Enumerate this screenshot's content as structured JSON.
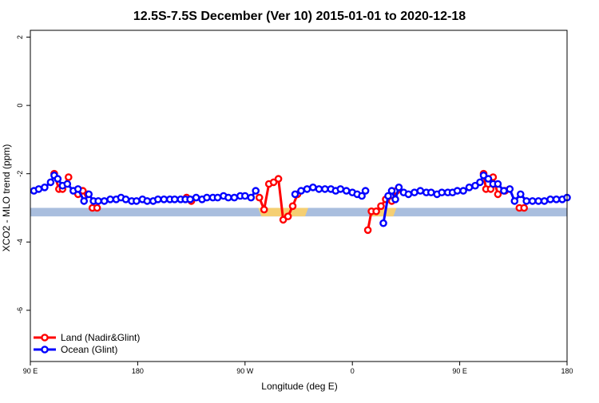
{
  "chart_data": {
    "type": "line",
    "title": "12.5S-7.5S December (Ver 10)   2015-01-01 to 2020-12-18",
    "xlabel": "Longitude (deg E)",
    "ylabel": "XCO2 - MLO trend (ppm)",
    "xlim": [
      90,
      540
    ],
    "ylim": [
      -7.5,
      2.2
    ],
    "x_ticks": [
      {
        "value": 90,
        "label": "90 E"
      },
      {
        "value": 180,
        "label": "180"
      },
      {
        "value": 270,
        "label": "90 W"
      },
      {
        "value": 360,
        "label": "0"
      },
      {
        "value": 450,
        "label": "90 E"
      },
      {
        "value": 540,
        "label": "180"
      }
    ],
    "y_ticks": [
      {
        "value": 2,
        "label": "2"
      },
      {
        "value": 0,
        "label": "0"
      },
      {
        "value": -2,
        "label": "-2"
      },
      {
        "value": -4,
        "label": "-4"
      },
      {
        "value": -6,
        "label": "-6"
      }
    ],
    "band": {
      "y_low": -3.25,
      "y_high": -3.0,
      "color": "#a9bede"
    },
    "band_highlights": [
      {
        "x_start": 281,
        "x_end": 323,
        "color": "#f5cf73"
      },
      {
        "x_start": 373,
        "x_end": 397,
        "color": "#f5cf73"
      }
    ],
    "legend": {
      "position": "bottom-left"
    },
    "series": [
      {
        "name": "Land (Nadir&Glint)",
        "color": "#ff0000",
        "segments": [
          {
            "x": [
              110,
              114,
              117,
              122
            ],
            "y": [
              -2.0,
              -2.45,
              -2.45,
              -2.1
            ]
          },
          {
            "x": [
              130,
              134,
              138
            ],
            "y": [
              -2.6,
              -2.5,
              -2.6
            ]
          },
          {
            "x": [
              142,
              146
            ],
            "y": [
              -3.0,
              -3.0
            ]
          },
          {
            "x": [
              221,
              225
            ],
            "y": [
              -2.7,
              -2.8
            ]
          },
          {
            "x": [
              282,
              286,
              290,
              294,
              298,
              302,
              306,
              310,
              314
            ],
            "y": [
              -2.7,
              -3.05,
              -2.3,
              -2.25,
              -2.15,
              -3.35,
              -3.25,
              -2.95,
              -2.6
            ]
          },
          {
            "x": [
              373,
              376,
              380,
              384,
              388,
              393,
              397
            ],
            "y": [
              -3.65,
              -3.1,
              -3.1,
              -2.95,
              -2.75,
              -2.8,
              -2.5
            ]
          },
          {
            "x": [
              470,
              472,
              476,
              478,
              482,
              488
            ],
            "y": [
              -2.0,
              -2.45,
              -2.45,
              -2.1,
              -2.6,
              -2.5
            ]
          },
          {
            "x": [
              500,
              504
            ],
            "y": [
              -3.0,
              -3.0
            ]
          }
        ]
      },
      {
        "name": "Ocean (Glint)",
        "color": "#0000ff",
        "segments": [
          {
            "x": [
              93,
              97,
              102,
              107,
              110,
              113,
              117,
              121,
              126,
              130,
              135,
              139,
              143,
              147,
              152,
              157,
              162,
              166,
              170,
              175,
              179,
              184,
              188,
              193,
              197,
              202,
              207,
              211,
              216,
              220,
              224,
              229,
              234,
              238,
              243,
              247,
              252,
              256,
              261,
              266,
              270,
              275,
              279
            ],
            "y": [
              -2.5,
              -2.45,
              -2.4,
              -2.25,
              -2.05,
              -2.15,
              -2.35,
              -2.3,
              -2.5,
              -2.45,
              -2.8,
              -2.6,
              -2.8,
              -2.8,
              -2.8,
              -2.75,
              -2.75,
              -2.7,
              -2.75,
              -2.8,
              -2.8,
              -2.75,
              -2.8,
              -2.8,
              -2.75,
              -2.75,
              -2.75,
              -2.75,
              -2.75,
              -2.75,
              -2.75,
              -2.7,
              -2.75,
              -2.7,
              -2.7,
              -2.7,
              -2.65,
              -2.7,
              -2.7,
              -2.65,
              -2.65,
              -2.7,
              -2.5
            ]
          },
          {
            "x": [
              312,
              317,
              322,
              327,
              332,
              337,
              342,
              346,
              350,
              355,
              360,
              364,
              368,
              371
            ],
            "y": [
              -2.6,
              -2.5,
              -2.45,
              -2.4,
              -2.45,
              -2.45,
              -2.45,
              -2.5,
              -2.45,
              -2.5,
              -2.55,
              -2.6,
              -2.65,
              -2.5
            ]
          },
          {
            "x": [
              386,
              390,
              393,
              396,
              399,
              403,
              407,
              412,
              417,
              422,
              426,
              431,
              435,
              440,
              444,
              448,
              453,
              458,
              463,
              467,
              470,
              474,
              478,
              482,
              487,
              492,
              496,
              501,
              506,
              511,
              516,
              521,
              526,
              531,
              536,
              540
            ],
            "y": [
              -3.45,
              -2.65,
              -2.5,
              -2.75,
              -2.4,
              -2.55,
              -2.6,
              -2.55,
              -2.5,
              -2.55,
              -2.55,
              -2.6,
              -2.55,
              -2.55,
              -2.55,
              -2.5,
              -2.5,
              -2.4,
              -2.35,
              -2.25,
              -2.05,
              -2.15,
              -2.3,
              -2.3,
              -2.5,
              -2.45,
              -2.8,
              -2.6,
              -2.8,
              -2.8,
              -2.8,
              -2.8,
              -2.75,
              -2.75,
              -2.75,
              -2.7
            ]
          }
        ]
      }
    ]
  }
}
